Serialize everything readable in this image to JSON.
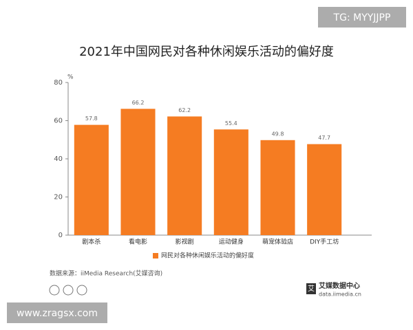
{
  "chart_data": {
    "type": "bar",
    "title": "2021年中国网民对各种休闲娱乐活动的偏好度",
    "y_label": "%",
    "categories": [
      "剧本杀",
      "看电影",
      "影视剧",
      "运动健身",
      "萌宠体验店",
      "DIY手工坊"
    ],
    "series": [
      {
        "name": "网民对各种休闲娱乐活动的偏好度",
        "color": "#f57c22",
        "values": [
          57.8,
          66.2,
          62.2,
          55.4,
          49.8,
          47.7
        ]
      }
    ],
    "ylim": [
      0,
      80
    ],
    "yticks": [
      0,
      20,
      40,
      60,
      80
    ],
    "grid": false,
    "source": "数据来源：iiMedia Research(艾媒咨询)"
  },
  "watermark": "TG: MYYJJPP",
  "site": "www.zragsx.com",
  "logo": {
    "mark": "艾",
    "name": "艾媒数据中心",
    "url": "data.iimedia.cn"
  }
}
